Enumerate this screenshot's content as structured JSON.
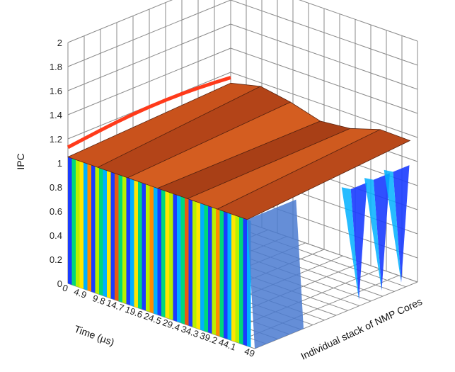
{
  "chart_data": {
    "type": "surface",
    "zlabel": "IPC",
    "xlabel": "Time (μs)",
    "ylabel": "Individual stack of NMP Cores",
    "zlim": [
      0,
      2
    ],
    "z_ticks": [
      "0",
      "0.2",
      "0.4",
      "0.6",
      "0.8",
      "1",
      "1.2",
      "1.4",
      "1.6",
      "1.8",
      "2"
    ],
    "time_ticks": [
      "0",
      "4.9",
      "9.8",
      "14.7",
      "19.6",
      "24.5",
      "29.4",
      "34.3",
      "39.2",
      "44.1",
      "49"
    ],
    "grid": true,
    "plateau_ipc": 1.05,
    "plateau_ipc_range": [
      1.0,
      1.25
    ],
    "colormap": [
      "#1a3cff",
      "#00b0ff",
      "#00d87a",
      "#b8f000",
      "#ffe600",
      "#ff8c00",
      "#e85a10",
      "#a04010"
    ]
  }
}
